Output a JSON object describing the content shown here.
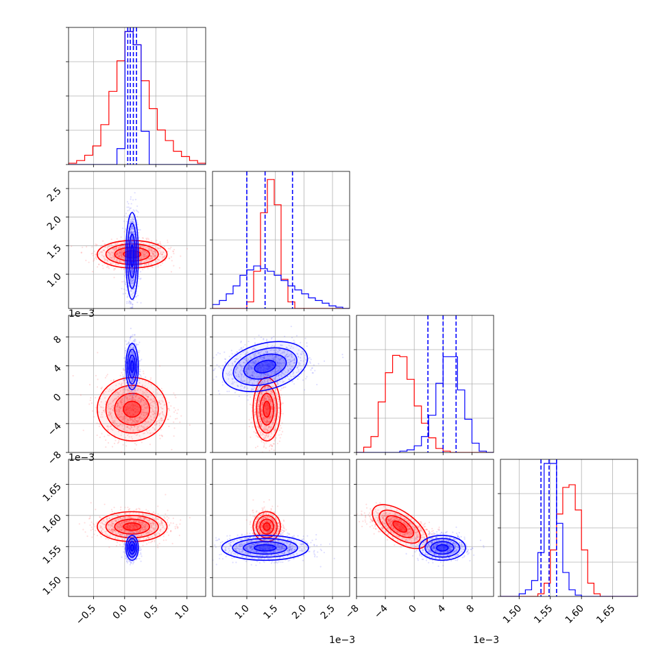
{
  "chart_data": {
    "type": "corner",
    "dimensions": 4,
    "series": [
      {
        "name": "",
        "color": "#ff0000",
        "means": [
          0.12,
          0.00135,
          -0.002,
          1.582
        ],
        "sds": [
          0.28,
          0.00012,
          0.0022,
          0.012
        ],
        "contour_samples": true
      },
      {
        "name": "",
        "color": "#0000ff",
        "means": [
          0.12,
          0.00132,
          0.0039,
          1.548
        ],
        "sds": [
          0.05,
          0.00038,
          0.0016,
          0.01
        ],
        "contour_samples": true
      }
    ],
    "axes": [
      {
        "range": [
          -0.9,
          1.3
        ],
        "ticks": [
          -0.5,
          0.0,
          0.5,
          1.0
        ],
        "tick_labels": [
          "−0.5",
          "0.0",
          "0.5",
          "1.0"
        ],
        "offset": ""
      },
      {
        "range": [
          0.0004,
          0.0028
        ],
        "ticks": [
          0.001,
          0.0015,
          0.002,
          0.0025
        ],
        "tick_labels": [
          "1.0",
          "1.5",
          "2.0",
          "2.5"
        ],
        "offset": "1e−3"
      },
      {
        "range": [
          -0.008,
          0.011
        ],
        "ticks": [
          -0.008,
          -0.004,
          0.0,
          0.004,
          0.008
        ],
        "tick_labels": [
          "−8",
          "−4",
          "0",
          "4",
          "8"
        ],
        "offset": "1e−3"
      },
      {
        "range": [
          1.47,
          1.69
        ],
        "ticks": [
          1.5,
          1.55,
          1.6,
          1.65
        ],
        "tick_labels": [
          "1.50",
          "1.55",
          "1.60",
          "1.65"
        ],
        "offset": ""
      }
    ],
    "quantile_lines": {
      "color": "#0000ff",
      "style": "dashed",
      "values": [
        [
          0.05,
          0.09,
          0.14,
          0.19
        ],
        [
          0.001,
          0.00132,
          0.0018
        ],
        [
          0.0019,
          0.004,
          0.0058
        ],
        [
          1.535,
          1.548,
          1.56
        ]
      ]
    },
    "histograms": [
      {
        "dim": 0,
        "red": [
          0.01,
          0.03,
          0.07,
          0.14,
          0.3,
          0.55,
          0.78,
          1.0,
          0.9,
          0.63,
          0.42,
          0.26,
          0.18,
          0.1,
          0.06,
          0.03,
          0.01
        ],
        "blue": [
          0.0,
          0.0,
          0.0,
          0.0,
          0.0,
          0.0,
          0.12,
          1.0,
          0.9,
          0.25,
          0.0,
          0.0,
          0.0,
          0.0,
          0.0,
          0.0,
          0.0
        ]
      },
      {
        "dim": 1,
        "red": [
          0.0,
          0.0,
          0.0,
          0.0,
          0.0,
          0.05,
          0.28,
          0.72,
          0.97,
          0.78,
          0.22,
          0.05,
          0.0,
          0.0,
          0.0,
          0.0,
          0.0,
          0.0,
          0.0,
          0.0
        ],
        "blue": [
          0.03,
          0.06,
          0.11,
          0.17,
          0.25,
          0.29,
          0.32,
          0.3,
          0.28,
          0.25,
          0.21,
          0.17,
          0.14,
          0.11,
          0.08,
          0.06,
          0.04,
          0.02,
          0.01,
          0.0
        ]
      },
      {
        "dim": 2,
        "red": [
          0.0,
          0.04,
          0.12,
          0.38,
          0.6,
          0.73,
          0.72,
          0.55,
          0.35,
          0.22,
          0.11,
          0.03,
          0.01,
          0.0,
          0.0,
          0.0,
          0.0,
          0.0,
          0.0
        ],
        "blue": [
          0.0,
          0.0,
          0.0,
          0.0,
          0.0,
          0.0,
          0.01,
          0.02,
          0.05,
          0.12,
          0.28,
          0.52,
          0.72,
          0.72,
          0.47,
          0.25,
          0.07,
          0.01,
          0.0
        ]
      },
      {
        "dim": 3,
        "red": [
          0.0,
          0.0,
          0.0,
          0.0,
          0.0,
          0.0,
          0.02,
          0.1,
          0.35,
          0.62,
          0.82,
          0.84,
          0.65,
          0.35,
          0.1,
          0.02,
          0.0,
          0.0,
          0.0,
          0.0,
          0.0,
          0.0
        ],
        "blue": [
          0.0,
          0.0,
          0.0,
          0.02,
          0.05,
          0.12,
          0.33,
          1.0,
          1.0,
          0.55,
          0.18,
          0.05,
          0.01,
          0.0,
          0.0,
          0.0,
          0.0,
          0.0,
          0.0,
          0.0,
          0.0,
          0.0
        ]
      }
    ],
    "grid": true
  }
}
